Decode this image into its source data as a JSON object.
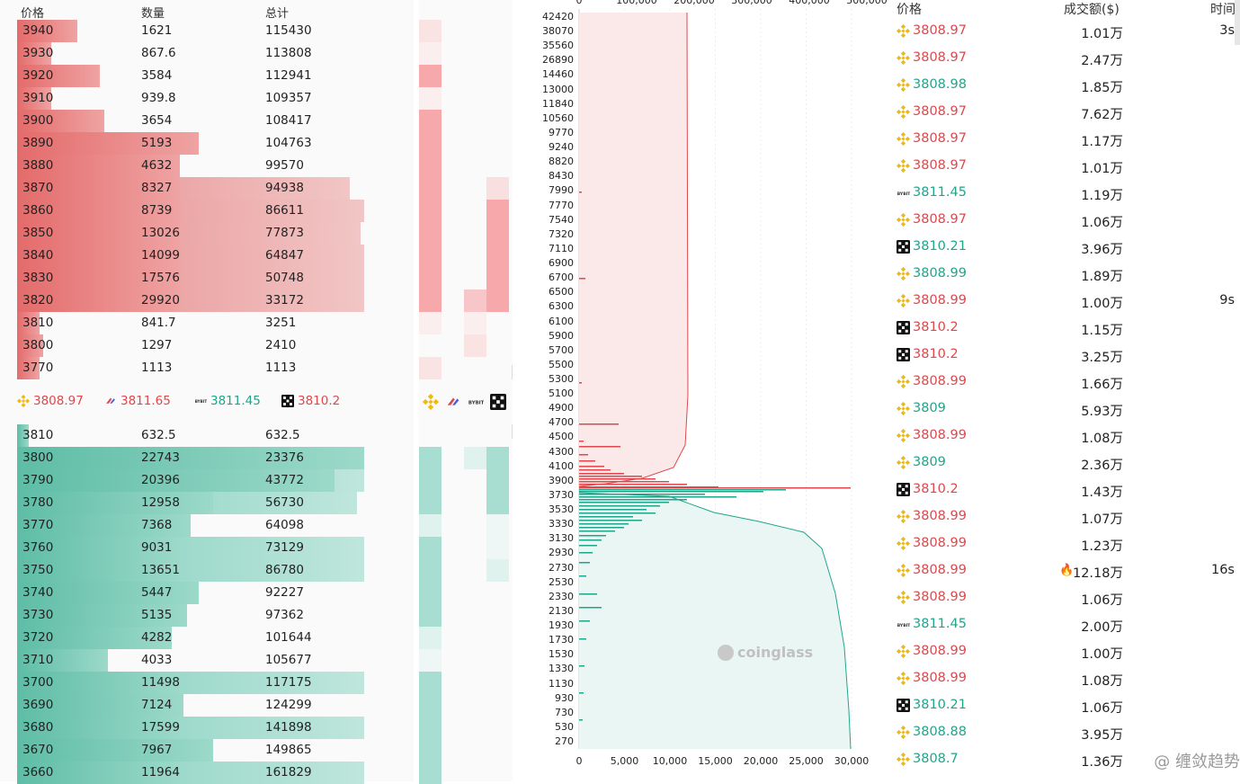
{
  "orderbook": {
    "headers": {
      "price": "价格",
      "qty": "数量",
      "total": "总计"
    },
    "asks": [
      {
        "price": "3940",
        "qty": "1621",
        "total": "115430",
        "q": 0.16,
        "t": 0
      },
      {
        "price": "3930",
        "qty": "867.6",
        "total": "113808",
        "q": 0.09,
        "t": 0
      },
      {
        "price": "3920",
        "qty": "3584",
        "total": "112941",
        "q": 0.22,
        "t": 0
      },
      {
        "price": "3910",
        "qty": "939.8",
        "total": "109357",
        "q": 0.09,
        "t": 0
      },
      {
        "price": "3900",
        "qty": "3654",
        "total": "108417",
        "q": 0.23,
        "t": 0
      },
      {
        "price": "3890",
        "qty": "5193",
        "total": "104763",
        "q": 0.48,
        "t": 0
      },
      {
        "price": "3880",
        "qty": "4632",
        "total": "99570",
        "q": 0.43,
        "t": 0
      },
      {
        "price": "3870",
        "qty": "8327",
        "total": "94938",
        "q": 0.43,
        "t": 0.88
      },
      {
        "price": "3860",
        "qty": "8739",
        "total": "86611",
        "q": 0.43,
        "t": 0.92
      },
      {
        "price": "3850",
        "qty": "13026",
        "total": "77873",
        "q": 0.43,
        "t": 0.91
      },
      {
        "price": "3840",
        "qty": "14099",
        "total": "64847",
        "q": 0.43,
        "t": 0.92
      },
      {
        "price": "3830",
        "qty": "17576",
        "total": "50748",
        "q": 0.43,
        "t": 0.92
      },
      {
        "price": "3820",
        "qty": "29920",
        "total": "33172",
        "q": 0.43,
        "t": 0.92
      },
      {
        "price": "3810",
        "qty": "841.7",
        "total": "3251",
        "q": 0.06,
        "t": 0
      },
      {
        "price": "3800",
        "qty": "1297",
        "total": "2410",
        "q": 0.07,
        "t": 0
      },
      {
        "price": "3770",
        "qty": "1113",
        "total": "1113",
        "q": 0.06,
        "t": 0
      }
    ],
    "exchanges": [
      {
        "icon": "binance-icon",
        "price": "3808.97",
        "color": "red"
      },
      {
        "icon": "bitget-icon",
        "price": "3811.65",
        "color": "red"
      },
      {
        "icon": "bybit-icon",
        "price": "3811.45",
        "color": "green"
      },
      {
        "icon": "okx-icon",
        "price": "3810.2",
        "color": "red"
      }
    ],
    "bids": [
      {
        "price": "3810",
        "qty": "632.5",
        "total": "632.5",
        "q": 0.03,
        "t": 0
      },
      {
        "price": "3800",
        "qty": "22743",
        "total": "23376",
        "q": 0.92,
        "t": 0.92
      },
      {
        "price": "3790",
        "qty": "20396",
        "total": "43772",
        "q": 0.84,
        "t": 0.92
      },
      {
        "price": "3780",
        "qty": "12958",
        "total": "56730",
        "q": 0.52,
        "t": 0.9
      },
      {
        "price": "3770",
        "qty": "7368",
        "total": "64098",
        "q": 0.46,
        "t": 0
      },
      {
        "price": "3760",
        "qty": "9031",
        "total": "73129",
        "q": 0.43,
        "t": 0.92
      },
      {
        "price": "3750",
        "qty": "13651",
        "total": "86780",
        "q": 0.43,
        "t": 0.92
      },
      {
        "price": "3740",
        "qty": "5447",
        "total": "92227",
        "q": 0.48,
        "t": 0
      },
      {
        "price": "3730",
        "qty": "5135",
        "total": "97362",
        "q": 0.45,
        "t": 0
      },
      {
        "price": "3720",
        "qty": "4282",
        "total": "101644",
        "q": 0.41,
        "t": 0
      },
      {
        "price": "3710",
        "qty": "4033",
        "total": "105677",
        "q": 0.24,
        "t": 0
      },
      {
        "price": "3700",
        "qty": "11498",
        "total": "117175",
        "q": 0.43,
        "t": 0.92
      },
      {
        "price": "3690",
        "qty": "7124",
        "total": "124299",
        "q": 0.44,
        "t": 0
      },
      {
        "price": "3680",
        "qty": "17599",
        "total": "141898",
        "q": 0.43,
        "t": 0.92
      },
      {
        "price": "3670",
        "qty": "7967",
        "total": "149865",
        "q": 0.52,
        "t": 0
      },
      {
        "price": "3660",
        "qty": "11964",
        "total": "161829",
        "q": 0.43,
        "t": 0.92
      }
    ]
  },
  "depth": {
    "top_ticks": [
      "0",
      "100,000",
      "200,000",
      "300,000",
      "400,000",
      "500,000"
    ],
    "bottom_ticks": [
      "0",
      "5,000",
      "10,000",
      "15,000",
      "20,000",
      "25,000",
      "30,000"
    ],
    "y_labels": [
      "42420",
      "38070",
      "35560",
      "26890",
      "14460",
      "13000",
      "11840",
      "10560",
      "9770",
      "9240",
      "8820",
      "8430",
      "7990",
      "7770",
      "7540",
      "7320",
      "7110",
      "6900",
      "6700",
      "6500",
      "6300",
      "6100",
      "5900",
      "5700",
      "5500",
      "5300",
      "5100",
      "4900",
      "4700",
      "4500",
      "4300",
      "4100",
      "3900",
      "3730",
      "3530",
      "3330",
      "3130",
      "2930",
      "2730",
      "2530",
      "2330",
      "2130",
      "1930",
      "1730",
      "1530",
      "1330",
      "1130",
      "930",
      "730",
      "530",
      "270"
    ],
    "watermark": "coinglass",
    "colors": {
      "ask": "#e0474c",
      "bid": "#20a58b"
    }
  },
  "trades": {
    "headers": {
      "price": "价格",
      "amount": "成交额($)",
      "time": "时间"
    },
    "rows": [
      {
        "icon": "binance-icon",
        "price": "3808.97",
        "side": "red",
        "amount": "1.01万",
        "time": "3s"
      },
      {
        "icon": "binance-icon",
        "price": "3808.97",
        "side": "red",
        "amount": "2.47万",
        "time": ""
      },
      {
        "icon": "binance-icon",
        "price": "3808.98",
        "side": "green",
        "amount": "1.85万",
        "time": ""
      },
      {
        "icon": "binance-icon",
        "price": "3808.97",
        "side": "red",
        "amount": "7.62万",
        "time": ""
      },
      {
        "icon": "binance-icon",
        "price": "3808.97",
        "side": "red",
        "amount": "1.17万",
        "time": ""
      },
      {
        "icon": "binance-icon",
        "price": "3808.97",
        "side": "red",
        "amount": "1.01万",
        "time": ""
      },
      {
        "icon": "bybit-icon",
        "price": "3811.45",
        "side": "green",
        "amount": "1.19万",
        "time": ""
      },
      {
        "icon": "binance-icon",
        "price": "3808.97",
        "side": "red",
        "amount": "1.06万",
        "time": ""
      },
      {
        "icon": "okx-icon",
        "price": "3810.21",
        "side": "green",
        "amount": "3.96万",
        "time": ""
      },
      {
        "icon": "binance-icon",
        "price": "3808.99",
        "side": "green",
        "amount": "1.89万",
        "time": ""
      },
      {
        "icon": "binance-icon",
        "price": "3808.99",
        "side": "red",
        "amount": "1.00万",
        "time": "9s"
      },
      {
        "icon": "okx-icon",
        "price": "3810.2",
        "side": "red",
        "amount": "1.15万",
        "time": ""
      },
      {
        "icon": "okx-icon",
        "price": "3810.2",
        "side": "red",
        "amount": "3.25万",
        "time": ""
      },
      {
        "icon": "binance-icon",
        "price": "3808.99",
        "side": "red",
        "amount": "1.66万",
        "time": ""
      },
      {
        "icon": "binance-icon",
        "price": "3809",
        "side": "green",
        "amount": "5.93万",
        "time": ""
      },
      {
        "icon": "binance-icon",
        "price": "3808.99",
        "side": "red",
        "amount": "1.08万",
        "time": ""
      },
      {
        "icon": "binance-icon",
        "price": "3809",
        "side": "green",
        "amount": "2.36万",
        "time": ""
      },
      {
        "icon": "okx-icon",
        "price": "3810.2",
        "side": "red",
        "amount": "1.43万",
        "time": ""
      },
      {
        "icon": "binance-icon",
        "price": "3808.99",
        "side": "red",
        "amount": "1.07万",
        "time": ""
      },
      {
        "icon": "binance-icon",
        "price": "3808.99",
        "side": "red",
        "amount": "1.23万",
        "time": ""
      },
      {
        "icon": "binance-icon",
        "price": "3808.99",
        "side": "red",
        "amount": "12.18万",
        "time": "16s",
        "fire": true
      },
      {
        "icon": "binance-icon",
        "price": "3808.99",
        "side": "red",
        "amount": "1.06万",
        "time": ""
      },
      {
        "icon": "bybit-icon",
        "price": "3811.45",
        "side": "green",
        "amount": "2.00万",
        "time": ""
      },
      {
        "icon": "binance-icon",
        "price": "3808.99",
        "side": "red",
        "amount": "1.00万",
        "time": ""
      },
      {
        "icon": "binance-icon",
        "price": "3808.99",
        "side": "red",
        "amount": "1.08万",
        "time": ""
      },
      {
        "icon": "okx-icon",
        "price": "3810.21",
        "side": "green",
        "amount": "1.06万",
        "time": ""
      },
      {
        "icon": "binance-icon",
        "price": "3808.88",
        "side": "green",
        "amount": "3.95万",
        "time": ""
      },
      {
        "icon": "binance-icon",
        "price": "3808.7",
        "side": "green",
        "amount": "1.36万",
        "time": ""
      }
    ],
    "watermark": "@ 缠敛趋势"
  }
}
